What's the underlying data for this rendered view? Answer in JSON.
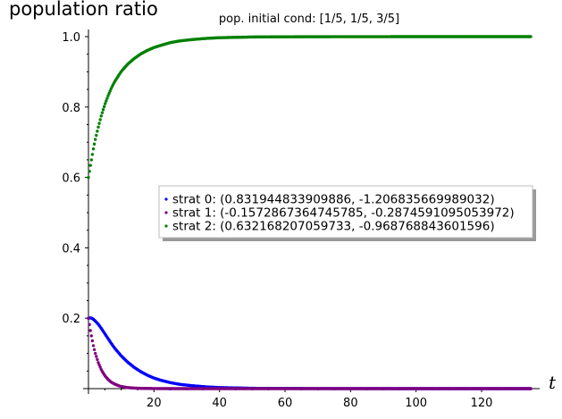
{
  "chart_data": {
    "type": "scatter",
    "title": "pop. initial cond: [1/5, 1/5, 3/5]",
    "xlabel": "t",
    "ylabel": "population ratio",
    "xlim": [
      0,
      135
    ],
    "ylim": [
      0,
      1.02
    ],
    "x_ticks": [
      20,
      40,
      60,
      80,
      100,
      120
    ],
    "y_ticks": [
      0.2,
      0.4,
      0.6,
      0.8,
      1.0
    ],
    "y_tick_labels": [
      "0.2",
      "0.4",
      "0.6",
      "0.8",
      "1.0"
    ],
    "legend_position": "center-right",
    "series": [
      {
        "name": "strat 0: (0.831944833909886, -1.206835669989032)",
        "color": "#0000ff",
        "x": [
          0,
          0.5,
          1,
          1.5,
          2,
          3,
          4,
          5,
          6,
          7,
          8,
          10,
          12,
          14,
          16,
          18,
          20,
          22,
          25,
          28,
          32,
          36,
          40,
          45,
          50,
          55,
          60,
          70,
          80,
          100,
          120,
          135
        ],
        "y": [
          0.2,
          0.201,
          0.2,
          0.197,
          0.193,
          0.183,
          0.17,
          0.156,
          0.142,
          0.128,
          0.115,
          0.093,
          0.075,
          0.06,
          0.048,
          0.038,
          0.03,
          0.024,
          0.017,
          0.012,
          0.008,
          0.005,
          0.003,
          0.002,
          0.001,
          0.0007,
          0.0004,
          0.0002,
          0.0001,
          0.0,
          0.0,
          0.0
        ]
      },
      {
        "name": "strat 1: (-0.1572867364745785, -0.2874591095053972)",
        "color": "#800080",
        "x": [
          0,
          0.5,
          1,
          1.5,
          2,
          3,
          4,
          5,
          6,
          7,
          8,
          9,
          10,
          12,
          14,
          16,
          20,
          25,
          30,
          40,
          60,
          80,
          100,
          120,
          135
        ],
        "y": [
          0.2,
          0.17,
          0.145,
          0.122,
          0.103,
          0.074,
          0.052,
          0.037,
          0.026,
          0.018,
          0.013,
          0.009,
          0.006,
          0.003,
          0.0015,
          0.0008,
          0.0002,
          0.0,
          0.0,
          0.0,
          0.0,
          0.0,
          0.0,
          0.0,
          0.0
        ]
      },
      {
        "name": "strat 2: (0.632168207059733, -0.968768843601596)",
        "color": "#008000",
        "x": [
          0,
          0.5,
          1,
          1.5,
          2,
          3,
          4,
          5,
          6,
          7,
          8,
          10,
          12,
          14,
          16,
          18,
          20,
          22,
          25,
          28,
          32,
          36,
          40,
          45,
          50,
          55,
          60,
          70,
          80,
          100,
          120,
          135
        ],
        "y": [
          0.6,
          0.629,
          0.655,
          0.681,
          0.704,
          0.743,
          0.778,
          0.807,
          0.832,
          0.854,
          0.872,
          0.901,
          0.922,
          0.938,
          0.951,
          0.961,
          0.969,
          0.975,
          0.983,
          0.988,
          0.992,
          0.995,
          0.997,
          0.998,
          0.999,
          0.9993,
          0.9996,
          0.9998,
          0.9999,
          1.0,
          1.0,
          1.0
        ]
      }
    ]
  }
}
